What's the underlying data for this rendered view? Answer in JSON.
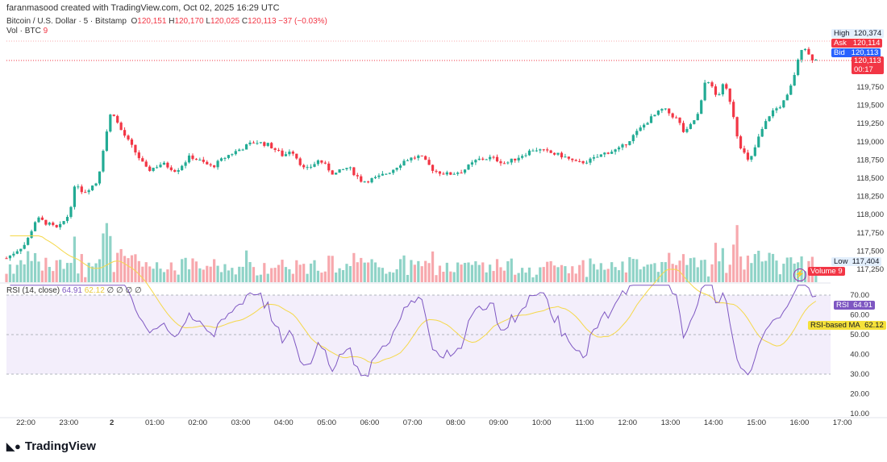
{
  "header": {
    "credit": "faranmasood created with TradingView.com, Oct 02, 2025 16:29 UTC",
    "symbol": "Bitcoin / U.S. Dollar · 5 · Bitstamp",
    "o": "120,151",
    "h": "120,170",
    "l": "120,025",
    "c": "120,113",
    "chg": "−37 (−0.03%)",
    "vol_label": "Vol · BTC",
    "vol_value": "9"
  },
  "rsi_legend": {
    "label": "RSI (14, close)",
    "rsi": "64.91",
    "ma": "62.12",
    "extra": "∅ ∅ ∅ ∅"
  },
  "tags": {
    "high_label": "High",
    "high": "120,374",
    "ask_label": "Ask",
    "ask": "120,114",
    "bid_label": "Bid",
    "bid": "120,113",
    "last": "120,113",
    "countdown": "00:17",
    "low_label": "Low",
    "low": "117,404",
    "volume_label": "Volume",
    "volume": "9",
    "rsi_label": "RSI",
    "rsi": "64.91",
    "ma_label": "RSI-based MA",
    "ma": "62.12"
  },
  "colors": {
    "up": "#22ab94",
    "down": "#f23645",
    "up_vol": "#8fd3c7",
    "down_vol": "#f7a8ad",
    "rsi": "#7e57c2",
    "ma": "#f5d84a"
  },
  "footer": {
    "brand": "TradingView"
  },
  "chart_data": {
    "type": "candlestick",
    "interval_minutes": 5,
    "price_ticks": [
      "119,750",
      "119,500",
      "119,250",
      "119,000",
      "118,750",
      "118,500",
      "118,250",
      "118,000",
      "117,750",
      "117,500",
      "117,250"
    ],
    "rsi_ticks": [
      "70.00",
      "60.00",
      "50.00",
      "40.00",
      "30.00",
      "20.00",
      "10.00"
    ],
    "time_ticks": [
      "22:00",
      "23:00",
      "2",
      "01:00",
      "02:00",
      "03:00",
      "04:00",
      "05:00",
      "06:00",
      "07:00",
      "08:00",
      "09:00",
      "10:00",
      "11:00",
      "12:00",
      "13:00",
      "14:00",
      "15:00",
      "16:00",
      "17:00"
    ],
    "close_keypoints_hours_from_22h": [
      [
        -0.45,
        117400
      ],
      [
        0,
        117600
      ],
      [
        0.25,
        117950
      ],
      [
        0.75,
        117800
      ],
      [
        1,
        118000
      ],
      [
        1.17,
        118450
      ],
      [
        1.33,
        118300
      ],
      [
        1.67,
        118450
      ],
      [
        1.83,
        119000
      ],
      [
        2,
        119450
      ],
      [
        2.17,
        119200
      ],
      [
        2.5,
        118900
      ],
      [
        2.83,
        118600
      ],
      [
        3.17,
        118700
      ],
      [
        3.5,
        118600
      ],
      [
        3.83,
        118800
      ],
      [
        4.33,
        118650
      ],
      [
        4.67,
        118800
      ],
      [
        5,
        118900
      ],
      [
        5.33,
        119000
      ],
      [
        5.67,
        118950
      ],
      [
        6,
        118800
      ],
      [
        6.17,
        118900
      ],
      [
        6.5,
        118600
      ],
      [
        6.83,
        118750
      ],
      [
        7.17,
        118550
      ],
      [
        7.5,
        118650
      ],
      [
        7.83,
        118450
      ],
      [
        8.17,
        118500
      ],
      [
        8.5,
        118600
      ],
      [
        8.83,
        118750
      ],
      [
        9.17,
        118800
      ],
      [
        9.5,
        118600
      ],
      [
        9.83,
        118550
      ],
      [
        10.17,
        118600
      ],
      [
        10.5,
        118750
      ],
      [
        10.83,
        118780
      ],
      [
        11.17,
        118700
      ],
      [
        11.5,
        118800
      ],
      [
        11.83,
        118900
      ],
      [
        12.17,
        118850
      ],
      [
        12.5,
        118800
      ],
      [
        12.83,
        118700
      ],
      [
        13.17,
        118750
      ],
      [
        13.5,
        118850
      ],
      [
        13.83,
        118900
      ],
      [
        14.17,
        119100
      ],
      [
        14.5,
        119300
      ],
      [
        14.83,
        119450
      ],
      [
        15.17,
        119300
      ],
      [
        15.33,
        119100
      ],
      [
        15.67,
        119400
      ],
      [
        15.83,
        119900
      ],
      [
        16.08,
        119600
      ],
      [
        16.25,
        119800
      ],
      [
        16.42,
        119500
      ],
      [
        16.58,
        119000
      ],
      [
        16.83,
        118700
      ],
      [
        17.08,
        119100
      ],
      [
        17.33,
        119400
      ],
      [
        17.58,
        119500
      ],
      [
        17.75,
        119650
      ],
      [
        17.92,
        120000
      ],
      [
        18.08,
        120350
      ],
      [
        18.25,
        120150
      ],
      [
        18.42,
        120113
      ]
    ],
    "price_range": [
      117150,
      120450
    ],
    "rsi_range": [
      0,
      75
    ]
  }
}
